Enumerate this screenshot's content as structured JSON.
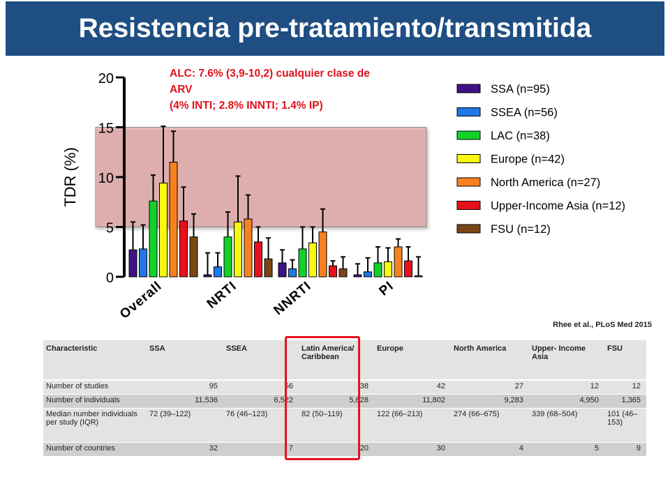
{
  "title": "Resistencia pre-tratamiento/transmitida",
  "annotation": {
    "line1": "ALC: 7.6% (3,9-10,2) cualquier clase de",
    "line2": "ARV",
    "line3": "(4% INTI; 2.8% INNTI; 1.4% IP)"
  },
  "citation": "Rhee et al., PLoS Med 2015",
  "chart_data": {
    "type": "bar",
    "ylabel": "TDR (%)",
    "ylim": [
      0,
      20
    ],
    "yticks": [
      "0",
      "5",
      "10",
      "15",
      "20"
    ],
    "categories": [
      "Overall",
      "NRTI",
      "NNRTI",
      "PI"
    ],
    "highlight_band": [
      5,
      15
    ],
    "series": [
      {
        "name": "SSA (n=95)",
        "color": "#3d1383",
        "values": [
          2.7,
          0.2,
          1.4,
          0.2
        ],
        "upper": [
          5.5,
          2.4,
          2.7,
          1.3
        ]
      },
      {
        "name": "SSEA (n=56)",
        "color": "#1f78e6",
        "values": [
          2.8,
          1.0,
          0.8,
          0.5
        ],
        "upper": [
          5.2,
          2.4,
          1.7,
          1.9
        ]
      },
      {
        "name": "LAC (n=38)",
        "color": "#12d22a",
        "values": [
          7.6,
          4.0,
          2.8,
          1.4
        ],
        "upper": [
          10.2,
          6.5,
          5.0,
          3.0
        ]
      },
      {
        "name": "Europe (n=42)",
        "color": "#f8f812",
        "values": [
          9.4,
          5.5,
          3.4,
          1.5
        ],
        "upper": [
          15.1,
          10.1,
          5.0,
          2.9
        ]
      },
      {
        "name": "North America (n=27)",
        "color": "#f6821f",
        "values": [
          11.5,
          5.8,
          4.5,
          3.0
        ],
        "upper": [
          14.6,
          8.2,
          6.8,
          3.8
        ]
      },
      {
        "name": "Upper-Income Asia (n=12)",
        "color": "#e8101d",
        "values": [
          5.6,
          3.5,
          1.1,
          1.6
        ],
        "upper": [
          9.0,
          5.0,
          1.6,
          3.0
        ]
      },
      {
        "name": "FSU (n=12)",
        "color": "#7b4616",
        "values": [
          4.0,
          1.8,
          0.8,
          0.1
        ],
        "upper": [
          6.3,
          3.9,
          2.0,
          2.0
        ]
      }
    ]
  },
  "table": {
    "headers": [
      "Characteristic",
      "SSA",
      "SSEA",
      "Latin America/ Caribbean",
      "Europe",
      "North America",
      "Upper- Income Asia",
      "FSU"
    ],
    "rows": [
      {
        "label": "Number of studies",
        "values": [
          "95",
          "56",
          "38",
          "42",
          "27",
          "12",
          "12"
        ]
      },
      {
        "label": "Number of individuals",
        "values": [
          "11,536",
          "6,522",
          "5,628",
          "11,802",
          "9,283",
          "4,950",
          "1,365"
        ]
      },
      {
        "label": "Median number individuals per study (IQR)",
        "values": [
          "72 (39–122)",
          "76 (46–123)",
          "82 (50–119)",
          "122 (66–213)",
          "274 (66–675)",
          "339 (68–504)",
          "101 (46–153)"
        ]
      },
      {
        "label": "Number of countries",
        "values": [
          "32",
          "7",
          "20",
          "30",
          "4",
          "5",
          "9"
        ]
      }
    ]
  }
}
